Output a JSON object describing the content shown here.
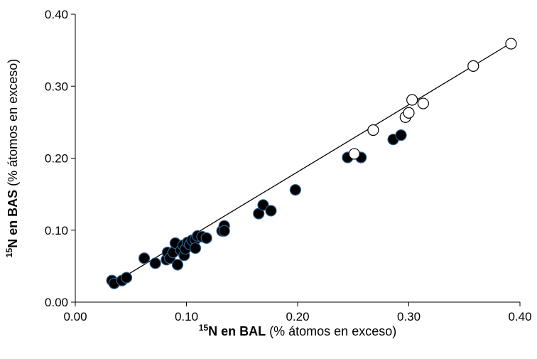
{
  "chart_data": {
    "type": "scatter",
    "x_axis": {
      "label_sup": "15",
      "label_bold": "N en BAL",
      "label_rest": " (% átomos en exceso)",
      "range": [
        0.0,
        0.4
      ],
      "ticks": [
        "0.00",
        "0.10",
        "0.20",
        "0.30",
        "0.40"
      ]
    },
    "y_axis": {
      "label_sup": "15",
      "label_bold": "N en BAS",
      "label_rest": " (% átomos en exceso)",
      "range": [
        0.0,
        0.4
      ],
      "ticks": [
        "0.00",
        "0.10",
        "0.20",
        "0.30",
        "0.40"
      ]
    },
    "grid": false,
    "legend": "none",
    "trendline": {
      "type": "linear",
      "points": [
        [
          0.035,
          0.027
        ],
        [
          0.392,
          0.36
        ]
      ]
    },
    "series": [
      {
        "marker": "filled-circle",
        "fill_color": "#000000",
        "edge_color": "#2f5f8f",
        "points": [
          [
            0.033,
            0.03
          ],
          [
            0.035,
            0.026
          ],
          [
            0.042,
            0.03
          ],
          [
            0.046,
            0.034
          ],
          [
            0.062,
            0.061
          ],
          [
            0.072,
            0.054
          ],
          [
            0.082,
            0.059
          ],
          [
            0.083,
            0.069
          ],
          [
            0.085,
            0.061
          ],
          [
            0.088,
            0.069
          ],
          [
            0.09,
            0.082
          ],
          [
            0.092,
            0.052
          ],
          [
            0.095,
            0.072
          ],
          [
            0.097,
            0.079
          ],
          [
            0.098,
            0.065
          ],
          [
            0.099,
            0.074
          ],
          [
            0.101,
            0.083
          ],
          [
            0.103,
            0.08
          ],
          [
            0.105,
            0.086
          ],
          [
            0.108,
            0.087
          ],
          [
            0.108,
            0.075
          ],
          [
            0.11,
            0.092
          ],
          [
            0.114,
            0.091
          ],
          [
            0.118,
            0.089
          ],
          [
            0.132,
            0.099
          ],
          [
            0.134,
            0.106
          ],
          [
            0.134,
            0.099
          ],
          [
            0.165,
            0.123
          ],
          [
            0.169,
            0.135
          ],
          [
            0.176,
            0.127
          ],
          [
            0.198,
            0.156
          ],
          [
            0.245,
            0.201
          ],
          [
            0.257,
            0.201
          ],
          [
            0.286,
            0.226
          ],
          [
            0.293,
            0.232
          ]
        ]
      },
      {
        "marker": "open-circle",
        "fill_color": "#ffffff",
        "edge_color": "#000000",
        "points": [
          [
            0.251,
            0.206
          ],
          [
            0.268,
            0.239
          ],
          [
            0.297,
            0.257
          ],
          [
            0.3,
            0.263
          ],
          [
            0.303,
            0.281
          ],
          [
            0.313,
            0.276
          ],
          [
            0.358,
            0.328
          ],
          [
            0.392,
            0.359
          ]
        ]
      }
    ]
  }
}
